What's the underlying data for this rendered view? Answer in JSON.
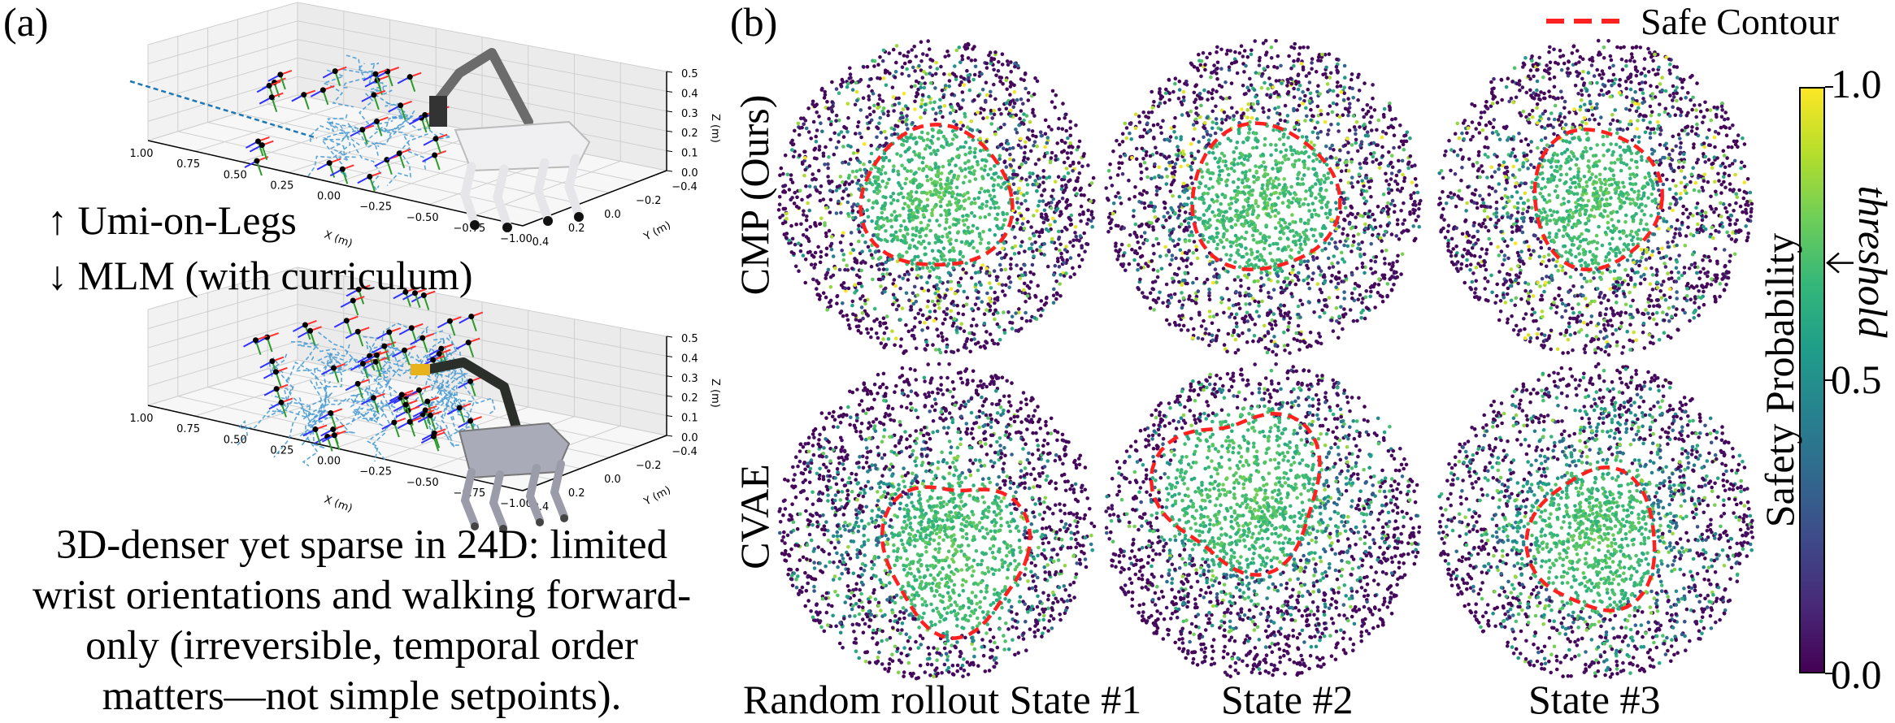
{
  "panel_a": {
    "label": "(a)",
    "caption_up": "↑ Umi-on-Legs",
    "caption_down": "↓ MLM (with curriculum)",
    "paragraph": [
      "3D-denser yet sparse in 24D: limited",
      "wrist orientations and walking forward-",
      "only (irreversible, temporal order",
      "matters—not simple setpoints)."
    ],
    "plot3d": {
      "x_label": "X (m)",
      "y_label": "Y (m)",
      "z_label": "Z (m)",
      "x_ticks": [
        "1.00",
        "0.75",
        "0.50",
        "0.25",
        "0.00",
        "−0.25",
        "−0.50",
        "−0.75",
        "−1.00"
      ],
      "y_ticks": [
        "−0.4",
        "−0.2",
        "0.0",
        "0.2",
        "0.4"
      ],
      "z_ticks": [
        "0.0",
        "0.1",
        "0.2",
        "0.3",
        "0.4",
        "0.5"
      ]
    }
  },
  "panel_b": {
    "label": "(b)",
    "legend": {
      "label": "Safe Contour",
      "color": "#ff2020",
      "style": "dashed"
    },
    "rows": [
      "CMP (Ours)",
      "CVAE"
    ],
    "columns": [
      "Random rollout State #1",
      "State #2",
      "State #3"
    ]
  },
  "chart_data": {
    "type": "scatter",
    "grid": false,
    "colormap": "viridis",
    "panels": [
      {
        "row": "CMP (Ours)",
        "column": "Random rollout State #1"
      },
      {
        "row": "CMP (Ours)",
        "column": "State #2"
      },
      {
        "row": "CMP (Ours)",
        "column": "State #3"
      },
      {
        "row": "CVAE",
        "column": "Random rollout State #1"
      },
      {
        "row": "CVAE",
        "column": "State #2"
      },
      {
        "row": "CVAE",
        "column": "State #3"
      }
    ],
    "colorbar": {
      "label": "Safety Probability",
      "range": [
        0.0,
        1.0
      ],
      "ticks": [
        "0.0",
        "0.5",
        "1.0"
      ],
      "threshold_label": "threshold",
      "threshold_value": 0.7
    }
  }
}
